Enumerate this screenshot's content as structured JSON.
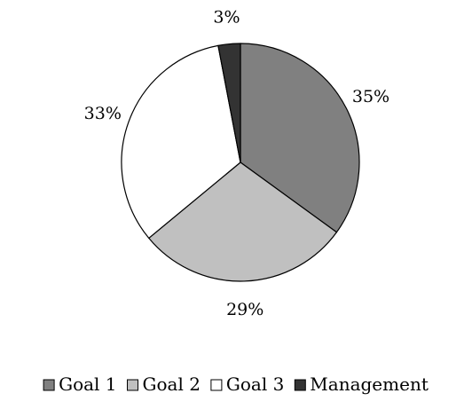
{
  "chart_data": {
    "type": "pie",
    "title": "",
    "categories": [
      "Goal 1",
      "Goal 2",
      "Goal 3",
      "Management"
    ],
    "values": [
      35,
      29,
      33,
      3
    ],
    "labels": [
      "35%",
      "29%",
      "33%",
      "3%"
    ],
    "colors": [
      "#808080",
      "#c0c0c0",
      "#ffffff",
      "#333333"
    ],
    "start_angle_deg": 0,
    "direction": "clockwise",
    "legend": {
      "placement": "bottom",
      "items": [
        "Goal 1",
        "Goal 2",
        "Goal 3",
        "Management"
      ]
    }
  }
}
